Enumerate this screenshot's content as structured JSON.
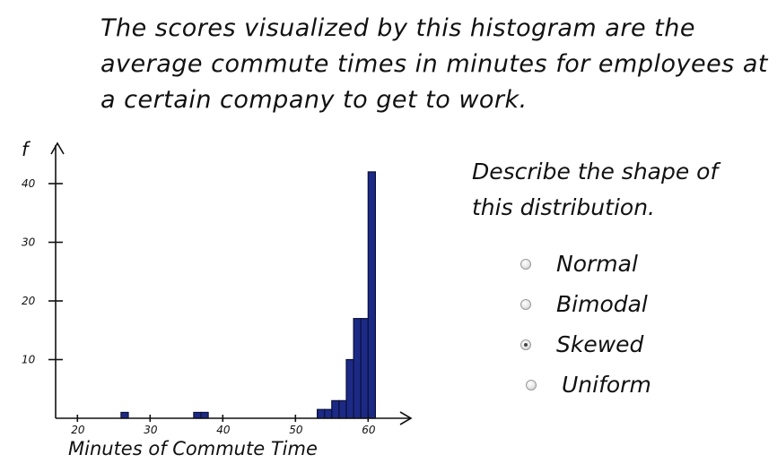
{
  "prompt": {
    "lines": [
      "The scores visualized by this histogram are the",
      "average commute times in minutes for employees at",
      "a certain company to get to work."
    ]
  },
  "question": {
    "lines": [
      "Describe the shape of",
      "this distribution."
    ]
  },
  "options": [
    {
      "label": "Normal",
      "selected": false
    },
    {
      "label": "Bimodal",
      "selected": false
    },
    {
      "label": "Skewed",
      "selected": true
    },
    {
      "label": "Uniform",
      "selected": false
    }
  ],
  "chart_data": {
    "type": "bar",
    "ylabel": "f",
    "xlabel": "Minutes of Commute Time",
    "x_ticks": [
      20,
      30,
      40,
      50,
      60
    ],
    "y_ticks": [
      10,
      20,
      30,
      40
    ],
    "xlim": [
      17,
      62
    ],
    "ylim": [
      0,
      43
    ],
    "bin_width": 1,
    "bars": [
      {
        "start": 26,
        "value": 1
      },
      {
        "start": 36,
        "value": 1
      },
      {
        "start": 37,
        "value": 1
      },
      {
        "start": 53,
        "value": 1.5
      },
      {
        "start": 54,
        "value": 1.5
      },
      {
        "start": 55,
        "value": 3
      },
      {
        "start": 56,
        "value": 3
      },
      {
        "start": 57,
        "value": 10
      },
      {
        "start": 58,
        "value": 17
      },
      {
        "start": 59,
        "value": 17
      },
      {
        "start": 60,
        "value": 42
      }
    ],
    "colors": {
      "bar": "#1c2a86"
    },
    "grid": false
  }
}
